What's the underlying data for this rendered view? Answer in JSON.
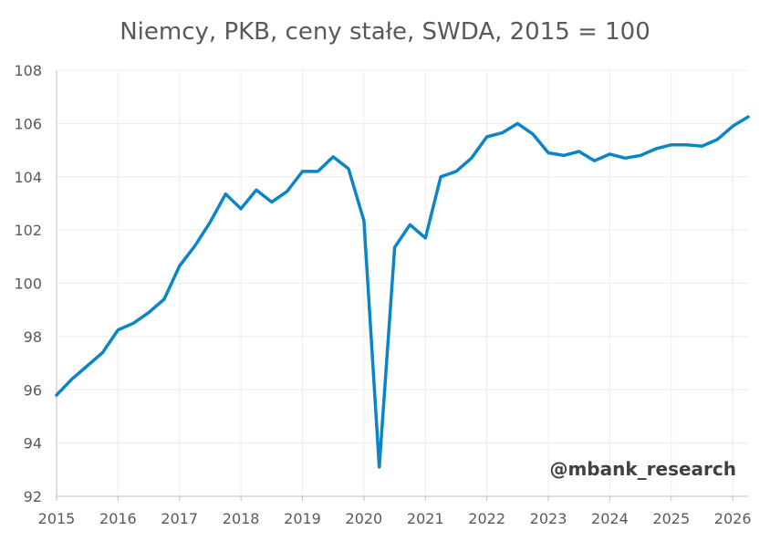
{
  "chart_data": {
    "type": "line",
    "title": "Niemcy, PKB, ceny stałe, SWDA, 2015 = 100",
    "xlabel": "",
    "ylabel": "",
    "ylim": [
      92,
      108
    ],
    "y_ticks": [
      92,
      94,
      96,
      98,
      100,
      102,
      104,
      106,
      108
    ],
    "x_ticks": [
      "2015",
      "2016",
      "2017",
      "2018",
      "2019",
      "2020",
      "2021",
      "2022",
      "2023",
      "2024",
      "2025",
      "2026"
    ],
    "x_start": 2015.0,
    "x_end": 2026.25,
    "grid": true,
    "legend": "none",
    "series": [
      {
        "color": "#0A86C8",
        "x": [
          2015.0,
          2015.25,
          2015.5,
          2015.75,
          2016.0,
          2016.25,
          2016.5,
          2016.75,
          2017.0,
          2017.25,
          2017.5,
          2017.75,
          2018.0,
          2018.25,
          2018.5,
          2018.75,
          2019.0,
          2019.25,
          2019.5,
          2019.75,
          2020.0,
          2020.25,
          2020.5,
          2020.75,
          2021.0,
          2021.25,
          2021.5,
          2021.75,
          2022.0,
          2022.25,
          2022.5,
          2022.75,
          2023.0,
          2023.25,
          2023.5,
          2023.75,
          2024.0,
          2024.25,
          2024.5,
          2024.75,
          2025.0,
          2025.25,
          2025.5,
          2025.75,
          2026.0,
          2026.25
        ],
        "values": [
          95.8,
          96.4,
          96.9,
          97.4,
          98.25,
          98.5,
          98.9,
          99.4,
          100.65,
          101.4,
          102.3,
          103.35,
          102.8,
          103.5,
          103.05,
          103.45,
          104.2,
          104.2,
          104.75,
          104.3,
          102.35,
          93.1,
          101.35,
          102.2,
          101.7,
          104.0,
          104.2,
          104.7,
          105.5,
          105.65,
          106.0,
          105.6,
          104.9,
          104.8,
          104.95,
          104.6,
          104.85,
          104.7,
          104.8,
          105.05,
          105.2,
          105.2,
          105.15,
          105.4,
          105.9,
          106.25
        ]
      }
    ]
  },
  "watermark": "@mbank_research"
}
